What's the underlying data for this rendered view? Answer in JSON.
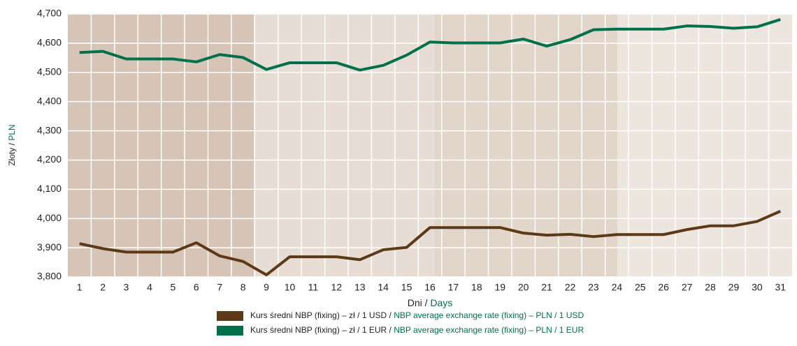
{
  "chart_data": {
    "type": "line",
    "y_label": [
      "Złoty /",
      "PLN"
    ],
    "x_label": [
      "Dni /",
      "Days"
    ],
    "categories": [
      "1",
      "2",
      "3",
      "4",
      "5",
      "6",
      "7",
      "8",
      "9",
      "10",
      "11",
      "12",
      "13",
      "14",
      "15",
      "16",
      "17",
      "18",
      "19",
      "20",
      "21",
      "22",
      "23",
      "24",
      "25",
      "26",
      "27",
      "28",
      "29",
      "30",
      "31"
    ],
    "series": [
      {
        "name": [
          "Kurs średni NBP (fixing) – zł / 1 USD /",
          "NBP average exchange rate (fixing) – PLN / 1 USD"
        ],
        "color": "#5c3a17",
        "values": [
          3.914,
          3.897,
          3.885,
          3.885,
          3.885,
          3.917,
          3.872,
          3.853,
          3.807,
          3.869,
          3.869,
          3.869,
          3.859,
          3.893,
          3.901,
          3.969,
          3.969,
          3.969,
          3.969,
          3.95,
          3.943,
          3.946,
          3.938,
          3.945,
          3.945,
          3.945,
          3.962,
          3.975,
          3.975,
          3.99,
          4.025
        ]
      },
      {
        "name": [
          "Kurs średni NBP (fixing) – zł / 1 EUR /",
          "NBP average exchange rate (fixing) – PLN / 1 EUR"
        ],
        "color": "#00704a",
        "values": [
          4.568,
          4.572,
          4.546,
          4.546,
          4.546,
          4.536,
          4.561,
          4.551,
          4.51,
          4.533,
          4.533,
          4.533,
          4.508,
          4.524,
          4.559,
          4.604,
          4.601,
          4.601,
          4.601,
          4.614,
          4.59,
          4.612,
          4.646,
          4.648,
          4.648,
          4.648,
          4.659,
          4.657,
          4.651,
          4.656,
          4.681
        ]
      }
    ],
    "ylim": [
      3.8,
      4.7
    ],
    "yticks": [
      {
        "value": 3.8,
        "label": "3,800"
      },
      {
        "value": 3.9,
        "label": "3,900"
      },
      {
        "value": 4.0,
        "label": "4,000"
      },
      {
        "value": 4.1,
        "label": "4,100"
      },
      {
        "value": 4.2,
        "label": "4,200"
      },
      {
        "value": 4.3,
        "label": "4,300"
      },
      {
        "value": 4.4,
        "label": "4,400"
      },
      {
        "value": 4.5,
        "label": "4,500"
      },
      {
        "value": 4.6,
        "label": "4,600"
      },
      {
        "value": 4.7,
        "label": "4,700"
      }
    ],
    "grid": true
  }
}
